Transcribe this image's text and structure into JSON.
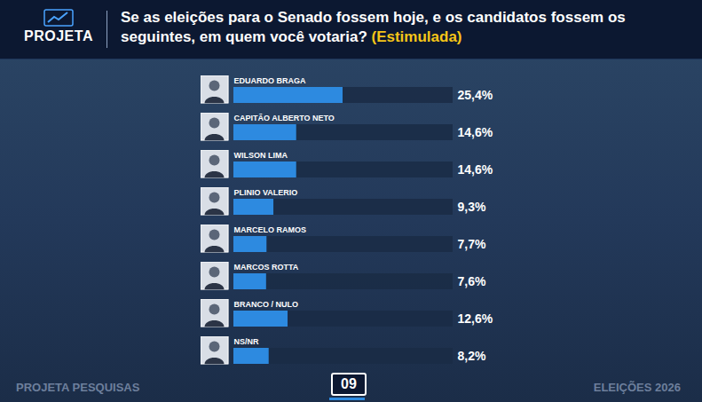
{
  "chart_data": {
    "type": "bar",
    "title": "Se as eleições para o Senado fossem hoje, e os candidatos fossem os seguintes, em quem você votaria?",
    "subtitle": "(Estimulada)",
    "categories": [
      "EDUARDO BRAGA",
      "CAPITÃO ALBERTO NETO",
      "WILSON LIMA",
      "PLINIO VALERIO",
      "MARCELO RAMOS",
      "MARCOS ROTTA",
      "BRANCO / NULO",
      "NS/NR"
    ],
    "values": [
      25.4,
      14.6,
      14.6,
      9.3,
      7.7,
      7.6,
      12.6,
      8.2
    ],
    "value_labels": [
      "25,4%",
      "14,6%",
      "14,6%",
      "9,3%",
      "7,7%",
      "7,6%",
      "12,6%",
      "8,2%"
    ],
    "color": "#2d8ae0",
    "orientation": "horizontal",
    "xlim": [
      0,
      51
    ],
    "grid": false,
    "data_labels": true,
    "tick_labels": "y"
  },
  "page": {
    "logo": "PROJETA",
    "footer_left": "PROJETA PESQUISAS",
    "page_number": "09",
    "footer_right": "ELEIÇÕES 2026"
  }
}
